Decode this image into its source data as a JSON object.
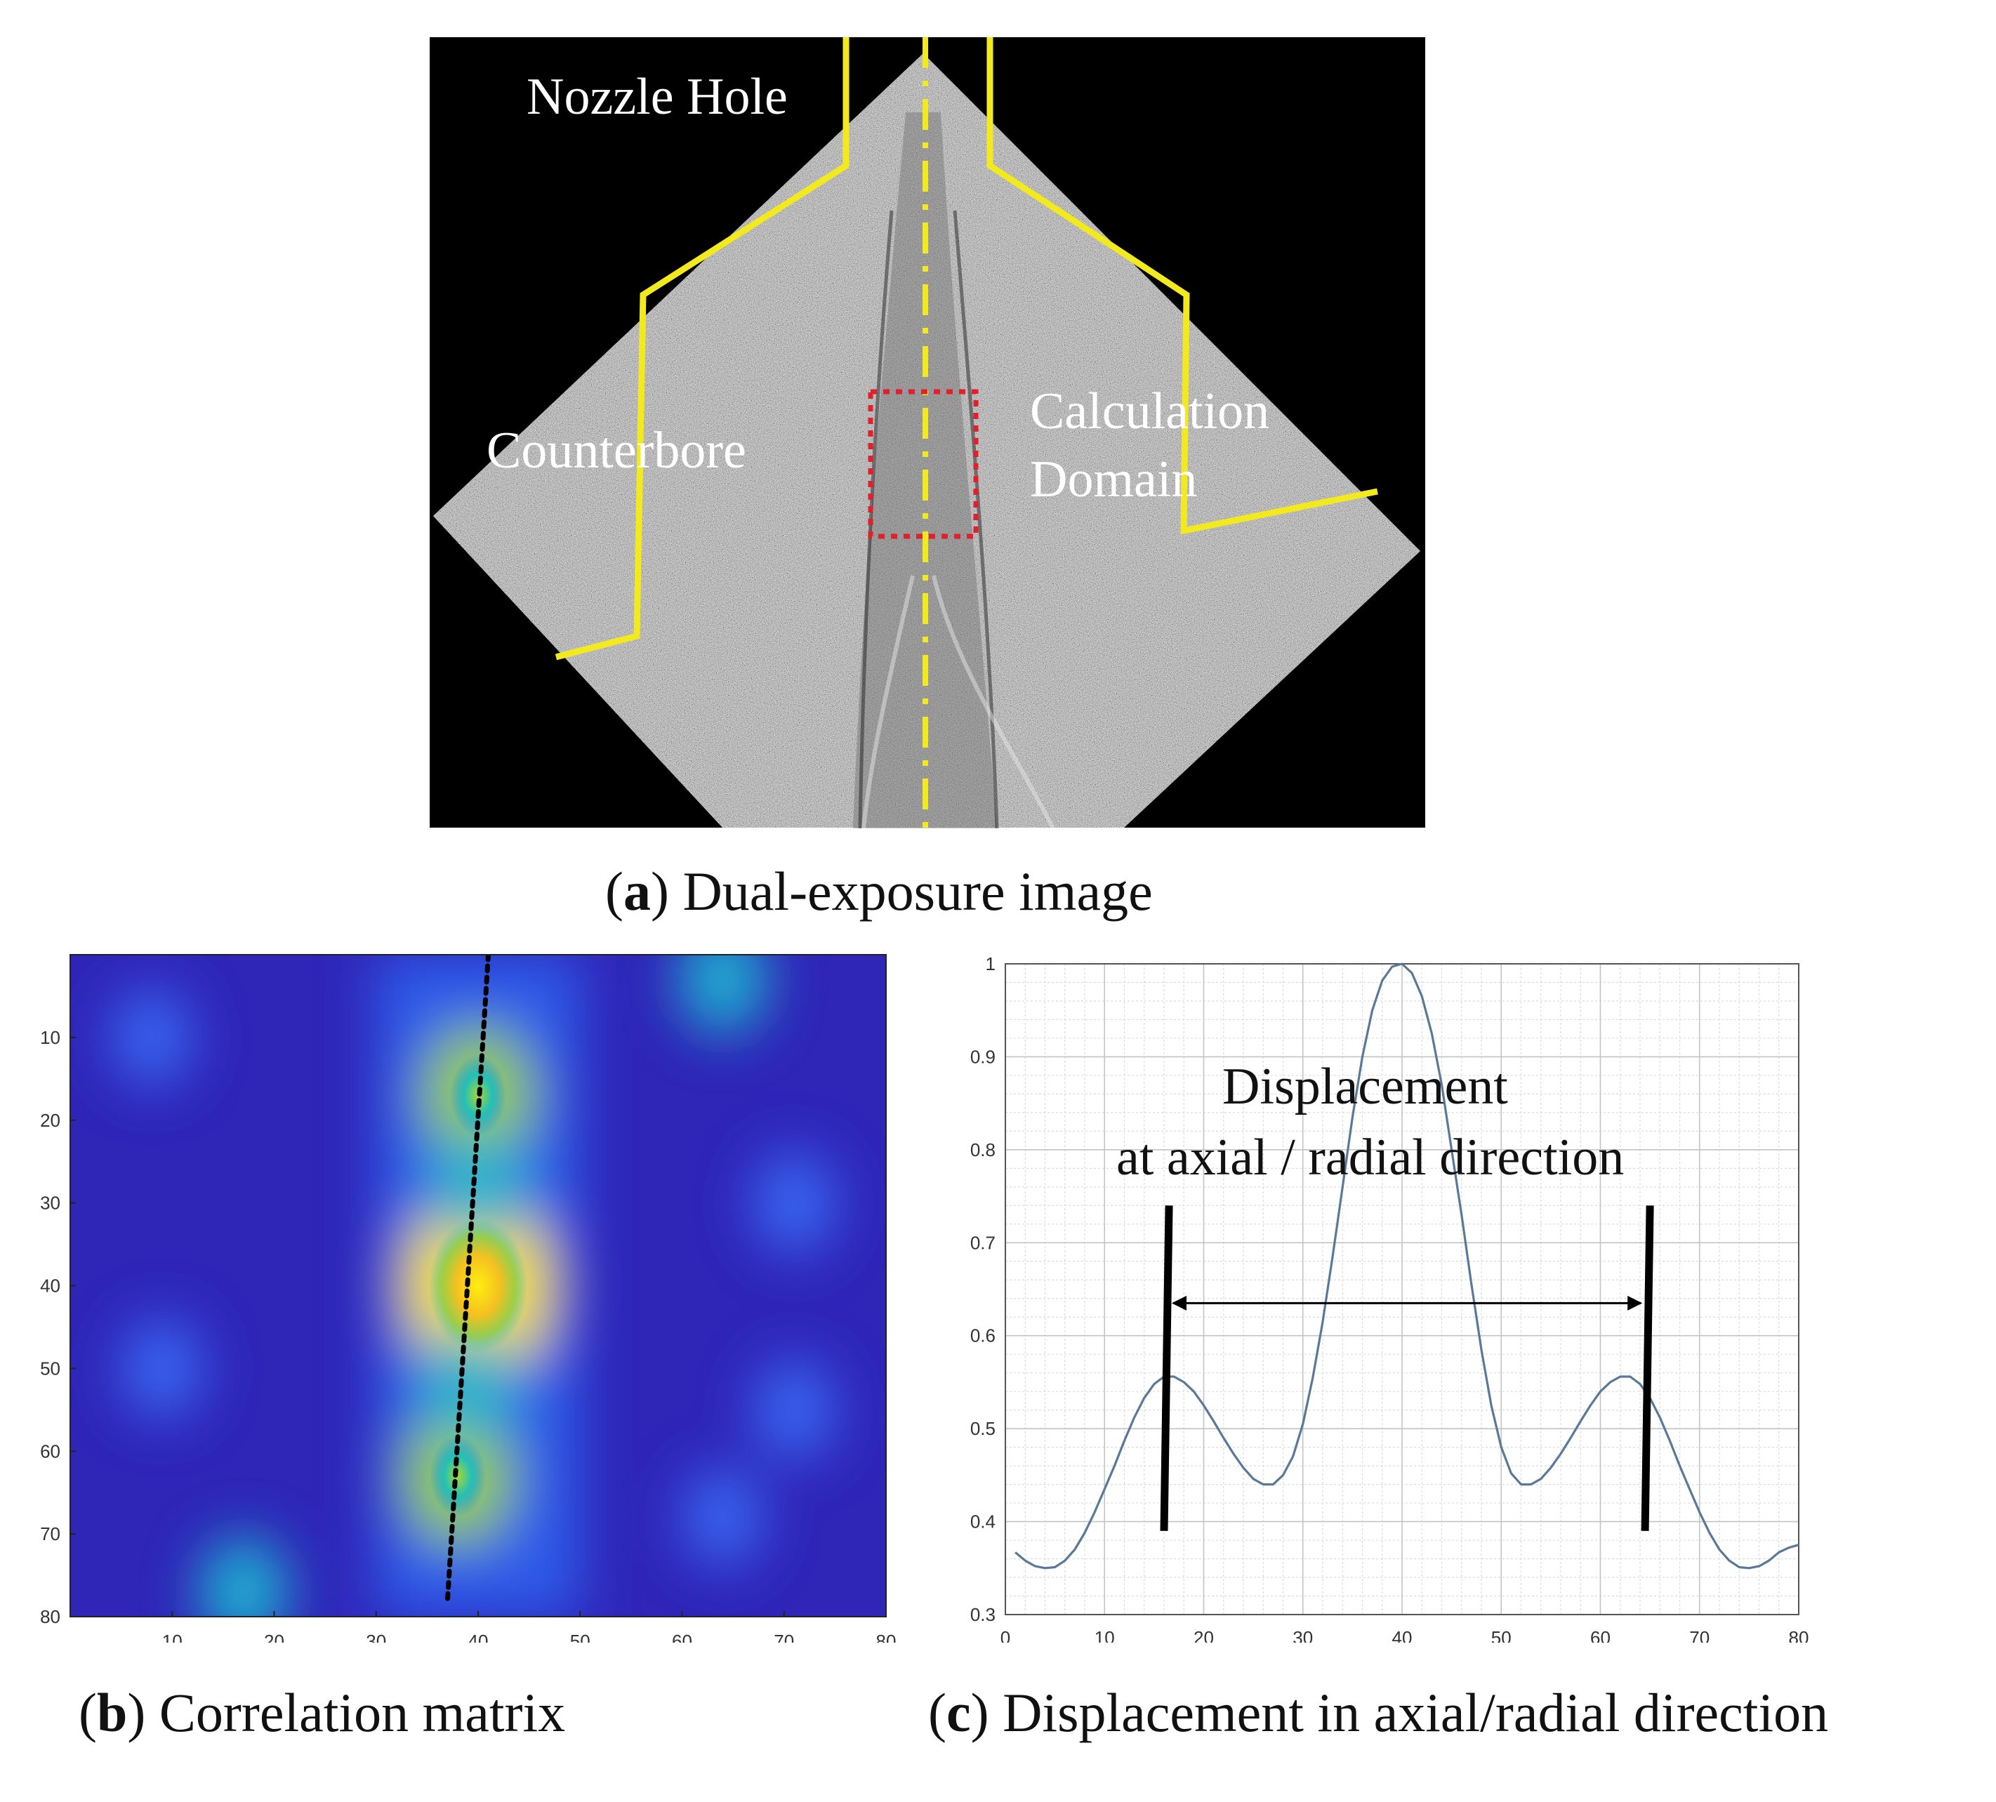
{
  "panel_a": {
    "caption_letter": "a",
    "caption_text": ") Dual-exposure image",
    "labels": {
      "nozzle_hole": "Nozzle Hole",
      "counterbore": "Counterbore",
      "calc_line1": "Calculation",
      "calc_line2": "Domain"
    },
    "colors": {
      "outline": "#f2ea1e",
      "roi": "#e0202a",
      "background": "#000000"
    }
  },
  "panel_b": {
    "caption_letter": "b",
    "caption_text": ") Correlation matrix"
  },
  "panel_c": {
    "caption_letter": "c",
    "caption_text": ") Displacement in axial/radial direction",
    "annotation_line1": "Displacement",
    "annotation_line2": "at axial / radial direction"
  },
  "chart_data": [
    {
      "type": "heatmap",
      "title": "",
      "xlim": [
        0,
        80
      ],
      "ylim": [
        80,
        0
      ],
      "xticks": [
        10,
        20,
        30,
        40,
        50,
        60,
        70,
        80
      ],
      "yticks": [
        10,
        20,
        30,
        40,
        50,
        60,
        70,
        80
      ],
      "colormap": "parula",
      "peak": {
        "x": 40,
        "y": 40
      },
      "ridge_line": {
        "x_start": 41,
        "y_start": 0,
        "x_end": 37,
        "y_end": 78
      },
      "blobs": [
        {
          "x": 40,
          "y": 40,
          "intensity": 1.0
        },
        {
          "x": 40,
          "y": 17,
          "intensity": 0.55
        },
        {
          "x": 38,
          "y": 63,
          "intensity": 0.55
        },
        {
          "x": 40,
          "y": 28,
          "intensity": 0.35
        },
        {
          "x": 39,
          "y": 52,
          "intensity": 0.35
        },
        {
          "x": 64,
          "y": 3,
          "intensity": 0.3
        },
        {
          "x": 17,
          "y": 77,
          "intensity": 0.3
        },
        {
          "x": 8,
          "y": 10,
          "intensity": 0.18
        },
        {
          "x": 9,
          "y": 50,
          "intensity": 0.2
        },
        {
          "x": 71,
          "y": 30,
          "intensity": 0.22
        },
        {
          "x": 71,
          "y": 55,
          "intensity": 0.2
        },
        {
          "x": 64,
          "y": 68,
          "intensity": 0.18
        }
      ]
    },
    {
      "type": "line",
      "title": "",
      "xlim": [
        0,
        80
      ],
      "ylim": [
        0.3,
        1
      ],
      "xticks": [
        0,
        10,
        20,
        30,
        40,
        50,
        60,
        70,
        80
      ],
      "yticks": [
        0.3,
        0.4,
        0.5,
        0.6,
        0.7,
        0.8,
        0.9,
        1
      ],
      "grid": true,
      "line_color": "#5a7898",
      "x": [
        1,
        2,
        3,
        4,
        5,
        6,
        7,
        8,
        9,
        10,
        11,
        12,
        13,
        14,
        15,
        16,
        17,
        18,
        19,
        20,
        21,
        22,
        23,
        24,
        25,
        26,
        27,
        28,
        29,
        30,
        31,
        32,
        33,
        34,
        35,
        36,
        37,
        38,
        39,
        40,
        41,
        42,
        43,
        44,
        45,
        46,
        47,
        48,
        49,
        50,
        51,
        52,
        53,
        54,
        55,
        56,
        57,
        58,
        59,
        60,
        61,
        62,
        63,
        64,
        65,
        66,
        67,
        68,
        69,
        70,
        71,
        72,
        73,
        74,
        75,
        76,
        77,
        78,
        79,
        80
      ],
      "series": [
        {
          "values": [
            0.367,
            0.358,
            0.352,
            0.35,
            0.351,
            0.358,
            0.37,
            0.388,
            0.41,
            0.435,
            0.46,
            0.487,
            0.512,
            0.533,
            0.548,
            0.556,
            0.556,
            0.55,
            0.54,
            0.525,
            0.508,
            0.49,
            0.473,
            0.458,
            0.446,
            0.44,
            0.44,
            0.45,
            0.47,
            0.505,
            0.555,
            0.615,
            0.685,
            0.76,
            0.835,
            0.9,
            0.95,
            0.982,
            0.997,
            1.0,
            0.99,
            0.965,
            0.925,
            0.87,
            0.8,
            0.73,
            0.655,
            0.585,
            0.525,
            0.48,
            0.452,
            0.44,
            0.44,
            0.446,
            0.458,
            0.473,
            0.49,
            0.508,
            0.525,
            0.54,
            0.55,
            0.556,
            0.556,
            0.548,
            0.533,
            0.512,
            0.487,
            0.46,
            0.435,
            0.41,
            0.388,
            0.37,
            0.358,
            0.351,
            0.35,
            0.352,
            0.358,
            0.367,
            0.372,
            0.375
          ]
        }
      ],
      "markers": [
        {
          "x_bottom": 16,
          "x_top": 16.5,
          "y_bottom": 0.39,
          "y_top": 0.74
        },
        {
          "x_bottom": 64.5,
          "x_top": 65,
          "y_bottom": 0.39,
          "y_top": 0.74
        }
      ],
      "arrow": {
        "x1": 16.5,
        "x2": 64.5,
        "y": 0.635
      }
    }
  ]
}
